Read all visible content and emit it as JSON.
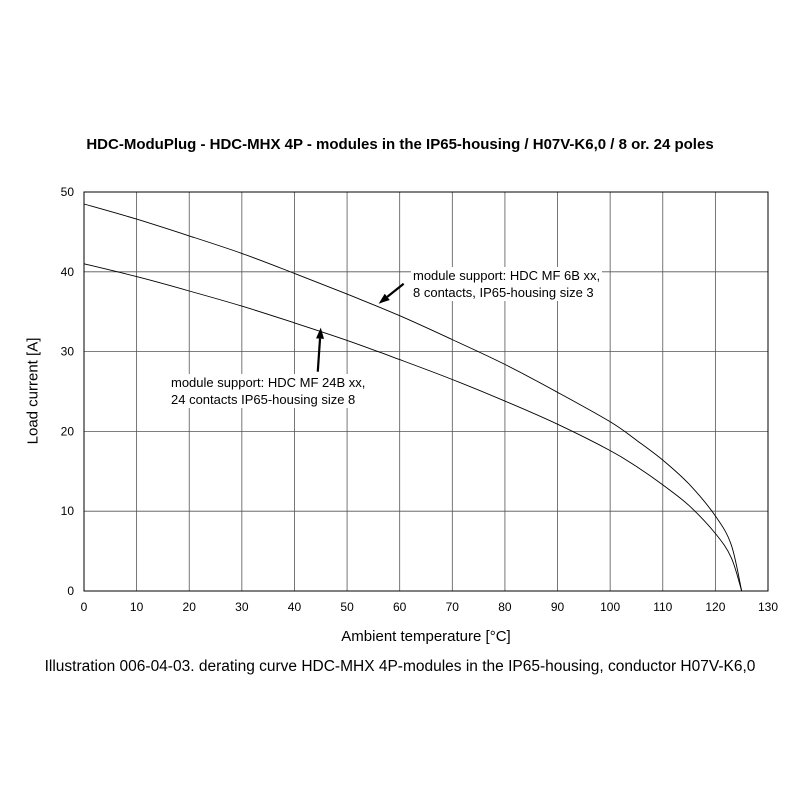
{
  "title": "HDC-ModuPlug - HDC-MHX 4P - modules in the IP65-housing / H07V-K6,0 / 8 or. 24 poles",
  "caption": "Illustration 006-04-03. derating curve HDC-MHX 4P-modules in the IP65-housing, conductor H07V-K6,0",
  "chart_data": {
    "type": "line",
    "title": "HDC-ModuPlug - HDC-MHX 4P - modules in the IP65-housing / H07V-K6,0 / 8 or. 24 poles",
    "xlabel": "Ambient temperature [°C]",
    "ylabel": "Load current [A]",
    "xlim": [
      0,
      130
    ],
    "ylim": [
      0,
      50
    ],
    "xticks": [
      "0",
      "10",
      "20",
      "30",
      "40",
      "50",
      "60",
      "70",
      "80",
      "90",
      "100",
      "110",
      "120",
      "130"
    ],
    "yticks": [
      "0",
      "10",
      "20",
      "30",
      "40",
      "50"
    ],
    "grid": true,
    "series": [
      {
        "name": "module support: HDC MF 6B xx, 8 contacts, IP65-housing size 3",
        "x": [
          0,
          10,
          20,
          30,
          40,
          50,
          60,
          70,
          80,
          90,
          100,
          105,
          110,
          115,
          120,
          123,
          125
        ],
        "y": [
          48.5,
          46.6,
          44.5,
          42.3,
          39.8,
          37.2,
          34.5,
          31.5,
          28.4,
          24.9,
          21.2,
          18.9,
          16.4,
          13.4,
          9.4,
          5.8,
          0
        ]
      },
      {
        "name": "module support: HDC MF 24B xx, 24 contacts IP65-housing size 8",
        "x": [
          0,
          10,
          20,
          30,
          40,
          50,
          60,
          70,
          80,
          90,
          100,
          105,
          110,
          115,
          120,
          123,
          125
        ],
        "y": [
          41.0,
          39.4,
          37.6,
          35.7,
          33.6,
          31.4,
          29.0,
          26.5,
          23.8,
          20.9,
          17.6,
          15.6,
          13.3,
          10.7,
          7.2,
          4.2,
          0
        ]
      }
    ],
    "annotations": [
      {
        "id": "upper",
        "lines": [
          "module support: HDC MF 6B xx,",
          "8 contacts, IP65-housing size 3"
        ],
        "target": [
          56,
          36
        ]
      },
      {
        "id": "lower",
        "lines": [
          "module support: HDC MF 24B xx,",
          "24 contacts IP65-housing size 8"
        ],
        "target": [
          45,
          33
        ]
      }
    ]
  }
}
